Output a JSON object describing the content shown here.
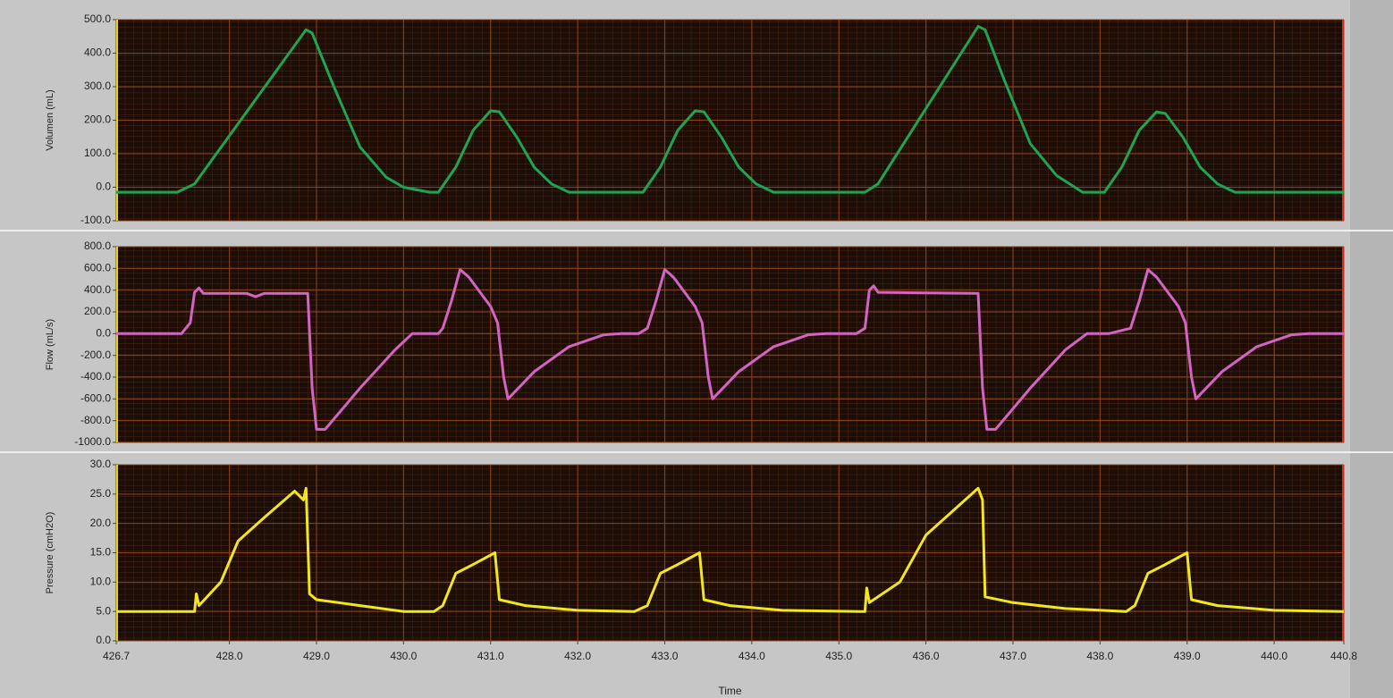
{
  "chart_data": [
    {
      "type": "line",
      "ylabel": "Volumen (mL)",
      "color": "#1fa552",
      "grid": true,
      "xlim": [
        426.7,
        440.8
      ],
      "ylim": [
        -100,
        500
      ],
      "yticks": [
        {
          "value": 500,
          "label": "500.0"
        },
        {
          "value": 400,
          "label": "400.0"
        },
        {
          "value": 300,
          "label": "300.0"
        },
        {
          "value": 200,
          "label": "200.0"
        },
        {
          "value": 100,
          "label": "100.0"
        },
        {
          "value": 0,
          "label": "0.0"
        },
        {
          "value": -100,
          "label": "-100.0"
        }
      ],
      "x": [
        426.7,
        427.4,
        427.6,
        428.88,
        428.95,
        429.2,
        429.5,
        429.8,
        430.0,
        430.3,
        430.4,
        430.6,
        430.8,
        431.0,
        431.1,
        431.3,
        431.5,
        431.7,
        431.9,
        432.75,
        432.95,
        433.15,
        433.35,
        433.45,
        433.65,
        433.85,
        434.05,
        434.25,
        435.3,
        435.45,
        436.6,
        436.68,
        436.9,
        437.2,
        437.5,
        437.8,
        438.05,
        438.25,
        438.45,
        438.65,
        438.75,
        438.95,
        439.15,
        439.35,
        439.55,
        440.8
      ],
      "values": [
        -15,
        -15,
        10,
        470,
        460,
        300,
        120,
        30,
        0,
        -15,
        -15,
        60,
        170,
        228,
        225,
        150,
        60,
        10,
        -15,
        -15,
        60,
        170,
        228,
        225,
        150,
        60,
        10,
        -15,
        -15,
        10,
        480,
        470,
        320,
        130,
        35,
        -15,
        -15,
        60,
        170,
        225,
        220,
        150,
        60,
        10,
        -15,
        -15
      ]
    },
    {
      "type": "line",
      "ylabel": "Flow (mL/s)",
      "color": "#d264c4",
      "grid": true,
      "xlim": [
        426.7,
        440.8
      ],
      "ylim": [
        -1000,
        800
      ],
      "yticks": [
        {
          "value": 800,
          "label": "800.0"
        },
        {
          "value": 600,
          "label": "600.0"
        },
        {
          "value": 400,
          "label": "400.0"
        },
        {
          "value": 200,
          "label": "200.0"
        },
        {
          "value": 0,
          "label": "0.0"
        },
        {
          "value": -200,
          "label": "-200.0"
        },
        {
          "value": -400,
          "label": "-400.0"
        },
        {
          "value": -600,
          "label": "-600.0"
        },
        {
          "value": -800,
          "label": "-800.0"
        },
        {
          "value": -1000,
          "label": "-1000.0"
        }
      ],
      "x": [
        426.7,
        427.45,
        427.55,
        427.6,
        427.65,
        427.7,
        428.2,
        428.3,
        428.4,
        428.9,
        428.95,
        429.0,
        429.1,
        429.5,
        429.9,
        430.1,
        430.4,
        430.45,
        430.55,
        430.65,
        430.75,
        431.0,
        431.08,
        431.15,
        431.2,
        431.5,
        431.9,
        432.3,
        432.5,
        432.7,
        432.8,
        432.9,
        433.0,
        433.1,
        433.35,
        433.43,
        433.5,
        433.55,
        433.85,
        434.25,
        434.65,
        434.85,
        435.2,
        435.3,
        435.35,
        435.4,
        435.45,
        436.6,
        436.65,
        436.7,
        436.8,
        437.2,
        437.6,
        437.85,
        438.1,
        438.35,
        438.45,
        438.55,
        438.65,
        438.9,
        438.98,
        439.05,
        439.1,
        439.4,
        439.8,
        440.2,
        440.4,
        440.8
      ],
      "values": [
        0,
        0,
        100,
        380,
        420,
        370,
        370,
        340,
        370,
        370,
        -500,
        -880,
        -880,
        -500,
        -150,
        0,
        0,
        50,
        300,
        590,
        520,
        250,
        100,
        -400,
        -600,
        -350,
        -120,
        -10,
        0,
        0,
        50,
        300,
        590,
        520,
        250,
        100,
        -400,
        -600,
        -350,
        -120,
        -10,
        0,
        0,
        50,
        400,
        440,
        380,
        370,
        -500,
        -880,
        -880,
        -500,
        -150,
        0,
        0,
        50,
        300,
        590,
        520,
        250,
        100,
        -400,
        -600,
        -350,
        -120,
        -10,
        0,
        0
      ]
    },
    {
      "type": "line",
      "ylabel": "Pressure (cmH2O)",
      "xlabel": "Time",
      "color": "#f2e61e",
      "grid": true,
      "xlim": [
        426.7,
        440.8
      ],
      "ylim": [
        0,
        30
      ],
      "xticks": [
        426.7,
        {
          "value": 428,
          "label": "428.0"
        },
        {
          "value": 429,
          "label": "429.0"
        },
        {
          "value": 430,
          "label": "430.0"
        },
        {
          "value": 431,
          "label": "431.0"
        },
        {
          "value": 432,
          "label": "432.0"
        },
        {
          "value": 433,
          "label": "433.0"
        },
        {
          "value": 434,
          "label": "434.0"
        },
        {
          "value": 435,
          "label": "435.0"
        },
        {
          "value": 436,
          "label": "436.0"
        },
        {
          "value": 437,
          "label": "437.0"
        },
        {
          "value": 438,
          "label": "438.0"
        },
        {
          "value": 439,
          "label": "439.0"
        },
        {
          "value": 440,
          "label": "440.0"
        },
        440.8
      ],
      "yticks": [
        {
          "value": 30,
          "label": "30.0"
        },
        {
          "value": 25,
          "label": "25.0"
        },
        {
          "value": 20,
          "label": "20.0"
        },
        {
          "value": 15,
          "label": "15.0"
        },
        {
          "value": 10,
          "label": "10.0"
        },
        {
          "value": 5,
          "label": "5.0"
        },
        {
          "value": 0,
          "label": "0.0"
        }
      ],
      "x": [
        426.7,
        427.6,
        427.62,
        427.65,
        427.9,
        428.1,
        428.4,
        428.75,
        428.85,
        428.88,
        428.92,
        429.0,
        429.5,
        430.0,
        430.35,
        430.45,
        430.6,
        430.8,
        431.05,
        431.1,
        431.4,
        432.0,
        432.65,
        432.8,
        432.95,
        433.15,
        433.4,
        433.45,
        433.75,
        434.35,
        435.25,
        435.3,
        435.32,
        435.35,
        435.7,
        436.0,
        436.3,
        436.6,
        436.65,
        436.68,
        437.0,
        437.6,
        438.3,
        438.4,
        438.55,
        438.75,
        439.0,
        439.05,
        439.35,
        440.0,
        440.8
      ],
      "values": [
        5,
        5,
        8,
        6,
        10,
        17,
        21,
        25.5,
        24,
        26,
        8,
        7,
        6,
        5,
        5,
        6,
        11.5,
        13,
        15,
        7,
        6,
        5.2,
        5,
        6,
        11.5,
        13,
        15,
        7,
        6,
        5.2,
        5,
        5,
        9,
        6.5,
        10,
        18,
        22,
        26,
        24,
        7.5,
        6.5,
        5.5,
        5,
        6,
        11.5,
        13,
        15,
        7,
        6,
        5.2,
        5
      ]
    }
  ]
}
